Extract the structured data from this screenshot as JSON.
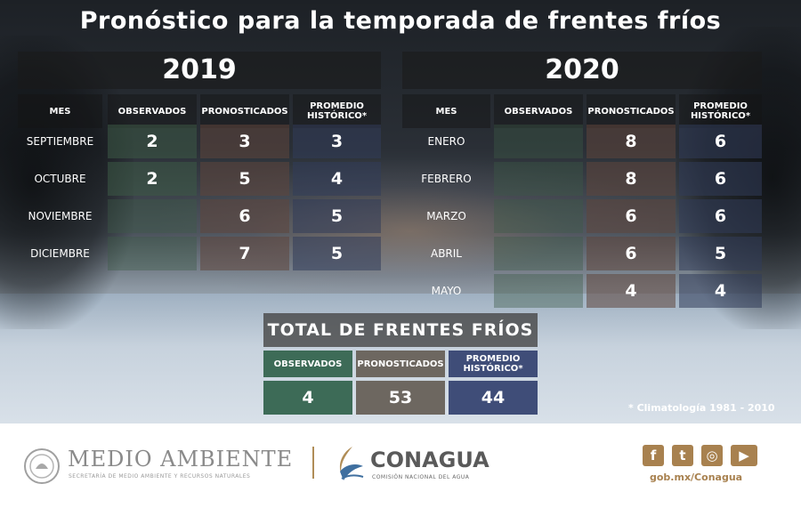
{
  "title": "Pronóstico para la temporada de frentes fríos",
  "year_2019": "2019",
  "year_2020": "2020",
  "headers": {
    "mes": "MES",
    "observados": "OBSERVADOS",
    "pronosticados": "PRONOSTICADOS",
    "promedio": "PROMEDIO HISTÓRICO*"
  },
  "table_2019": [
    {
      "mes": "SEPTIEMBRE",
      "observados": "2",
      "pronosticados": "3",
      "promedio": "3"
    },
    {
      "mes": "OCTUBRE",
      "observados": "2",
      "pronosticados": "5",
      "promedio": "4"
    },
    {
      "mes": "NOVIEMBRE",
      "observados": "",
      "pronosticados": "6",
      "promedio": "5"
    },
    {
      "mes": "DICIEMBRE",
      "observados": "",
      "pronosticados": "7",
      "promedio": "5"
    }
  ],
  "table_2020": [
    {
      "mes": "ENERO",
      "observados": "",
      "pronosticados": "8",
      "promedio": "6"
    },
    {
      "mes": "FEBRERO",
      "observados": "",
      "pronosticados": "8",
      "promedio": "6"
    },
    {
      "mes": "MARZO",
      "observados": "",
      "pronosticados": "6",
      "promedio": "6"
    },
    {
      "mes": "ABRIL",
      "observados": "",
      "pronosticados": "6",
      "promedio": "5"
    },
    {
      "mes": "MAYO",
      "observados": "",
      "pronosticados": "4",
      "promedio": "4"
    }
  ],
  "total": {
    "title": "TOTAL DE FRENTES FRÍOS",
    "observados_label": "OBSERVADOS",
    "pronosticados_label": "PRONOSTICADOS",
    "promedio_label": "PROMEDIO HISTÓRICO*",
    "observados": "4",
    "pronosticados": "53",
    "promedio": "44"
  },
  "footnote": "* Climatología 1981 - 2010",
  "footer": {
    "medio_ambiente": "MEDIO AMBIENTE",
    "medio_ambiente_sub": "SECRETARÍA DE MEDIO AMBIENTE Y RECURSOS NATURALES",
    "conagua": "CONAGUA",
    "conagua_sub": "COMISIÓN NACIONAL DEL AGUA",
    "url": "gob.mx/Conagua",
    "social_icons": [
      "facebook-icon",
      "twitter-icon",
      "instagram-icon",
      "youtube-icon"
    ]
  },
  "colors": {
    "observados": "#3d6b57",
    "pronosticados": "#6d6760",
    "promedio": "#3f4d78",
    "brand_gold": "#a8814f"
  }
}
